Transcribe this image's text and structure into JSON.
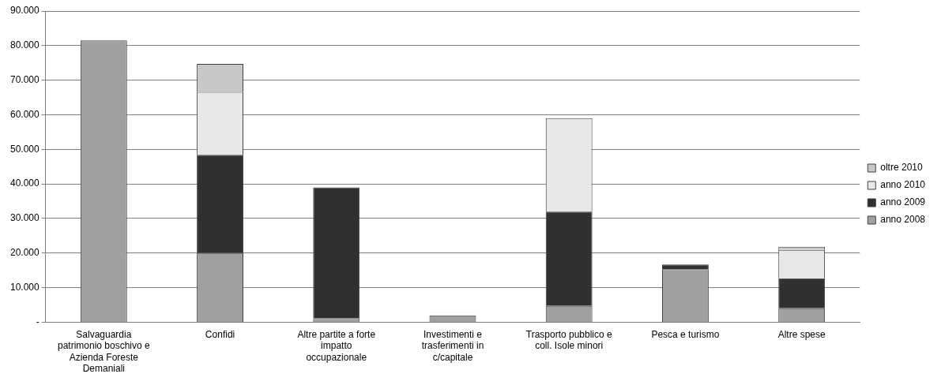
{
  "chart_data": {
    "type": "bar",
    "stacked": true,
    "categories": [
      "Salvaguardia patrimonio boschivo e Azienda Foreste Demaniali",
      "Confidi",
      "Altre partite a forte impatto occupazionale",
      "Investimenti e trasferimenti in c/capitale",
      "Trasporto pubblico e coll. Isole minori",
      "Pesca e turismo",
      "Altre spese"
    ],
    "series": [
      {
        "name": "anno 2008",
        "color": "#a0a0a0",
        "values": [
          81500,
          20000,
          1200,
          2000,
          4700,
          15300,
          4000
        ]
      },
      {
        "name": "anno 2009",
        "color": "#303030",
        "values": [
          null,
          28400,
          37800,
          null,
          27300,
          1400,
          8700
        ]
      },
      {
        "name": "anno 2010",
        "color": "#e8e8e8",
        "values": [
          null,
          18200,
          null,
          null,
          27000,
          null,
          8200
        ]
      },
      {
        "name": "oltre 2010",
        "color": "#c8c8c8",
        "values": [
          null,
          8100,
          null,
          null,
          null,
          null,
          900
        ]
      }
    ],
    "ylim": [
      0,
      90000
    ],
    "yticks": [
      {
        "value": 0,
        "label": "-"
      },
      {
        "value": 10000,
        "label": "10.000"
      },
      {
        "value": 20000,
        "label": "20.000"
      },
      {
        "value": 30000,
        "label": "30.000"
      },
      {
        "value": 40000,
        "label": "40.000"
      },
      {
        "value": 50000,
        "label": "50.000"
      },
      {
        "value": 60000,
        "label": "60.000"
      },
      {
        "value": 70000,
        "label": "70.000"
      },
      {
        "value": 80000,
        "label": "80.000"
      },
      {
        "value": 90000,
        "label": "90.000"
      }
    ],
    "grid": "y",
    "legend": "right"
  }
}
